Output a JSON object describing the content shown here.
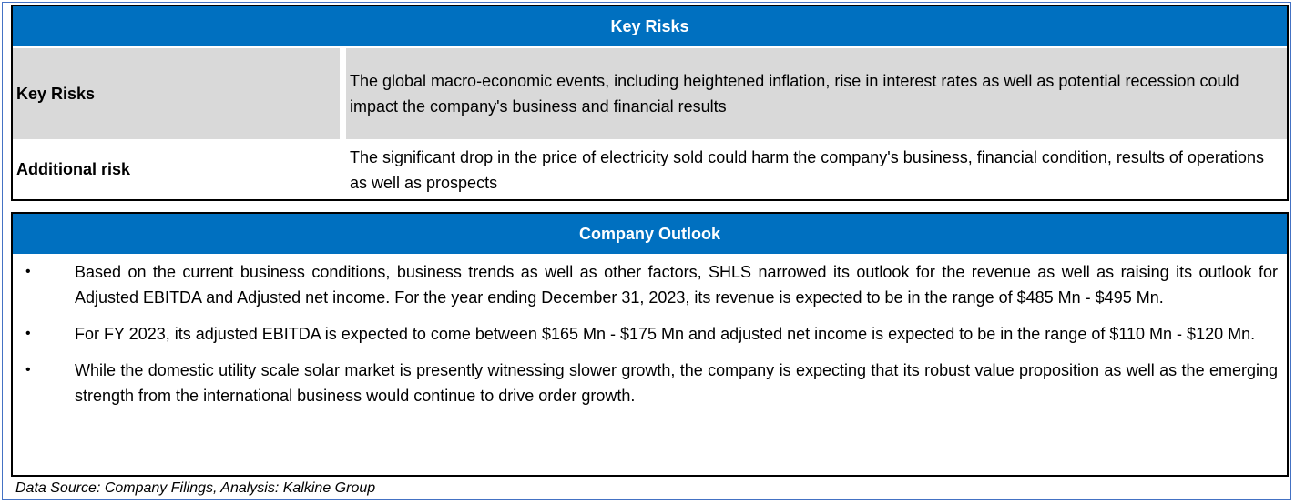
{
  "key_risks": {
    "header": "Key Risks",
    "rows": [
      {
        "label": "Key Risks",
        "text": "The global macro-economic events, including heightened inflation, rise in interest rates as well as potential recession could impact the company's business and financial results"
      },
      {
        "label": "Additional risk",
        "text": "The significant drop in the price of electricity sold could harm the company's business, financial condition, results of operations as well as prospects"
      }
    ]
  },
  "outlook": {
    "header": "Company Outlook",
    "bullets": [
      "Based on the current business conditions, business trends as well as other factors, SHLS narrowed its outlook for the revenue as well as raising its outlook for Adjusted EBITDA and Adjusted net income. For the year ending December 31, 2023, its revenue is expected to be in the range of $485 Mn - $495 Mn.",
      "For FY 2023, its adjusted EBITDA is expected to come between $165 Mn - $175 Mn and adjusted net income is expected to be in the range of $110 Mn - $120 Mn.",
      "While the domestic utility scale solar market is presently witnessing slower growth, the company is expecting that its robust value proposition as well as the emerging strength from the international business would continue to drive order growth."
    ],
    "bullet_glyph": "•"
  },
  "source_note": "Data Source: Company Filings, Analysis: Kalkine Group",
  "colors": {
    "header_bg": "#0070c0",
    "shade": "#d9d9d9",
    "frame": "#4472c4"
  }
}
